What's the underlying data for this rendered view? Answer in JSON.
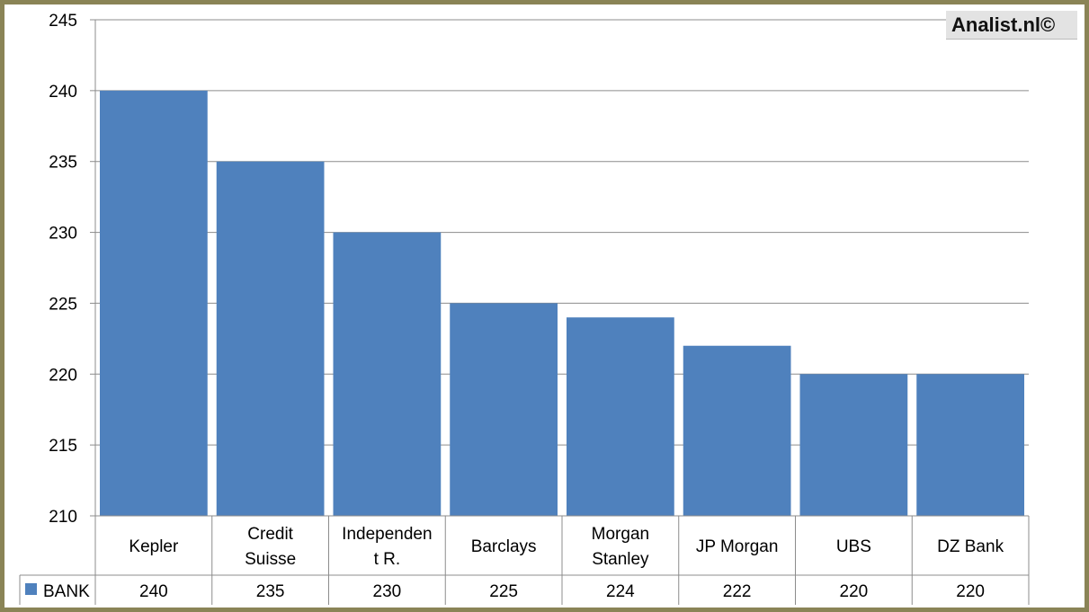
{
  "watermark": "Analist.nl©",
  "chart_data": {
    "type": "bar",
    "title": "",
    "xlabel": "",
    "ylabel": "",
    "categories": [
      [
        "Kepler"
      ],
      [
        "Credit",
        "Suisse"
      ],
      [
        "Independen",
        "t R."
      ],
      [
        "Barclays"
      ],
      [
        "Morgan",
        "Stanley"
      ],
      [
        "JP Morgan"
      ],
      [
        "UBS"
      ],
      [
        "DZ Bank"
      ]
    ],
    "series": [
      {
        "name": "BANK",
        "color": "#4f81bd",
        "values": [
          240,
          235,
          230,
          225,
          224,
          222,
          220,
          220
        ],
        "value_labels": [
          "240",
          "235",
          "230",
          "225",
          "224",
          "222",
          "220",
          "220"
        ]
      }
    ],
    "ylim": [
      210,
      245
    ],
    "yticks": [
      210,
      215,
      220,
      225,
      230,
      235,
      240,
      245
    ],
    "ytick_labels": [
      "210",
      "215",
      "220",
      "225",
      "230",
      "235",
      "240",
      "245"
    ],
    "grid": true,
    "legend": "data-table-left",
    "data_table": true
  }
}
